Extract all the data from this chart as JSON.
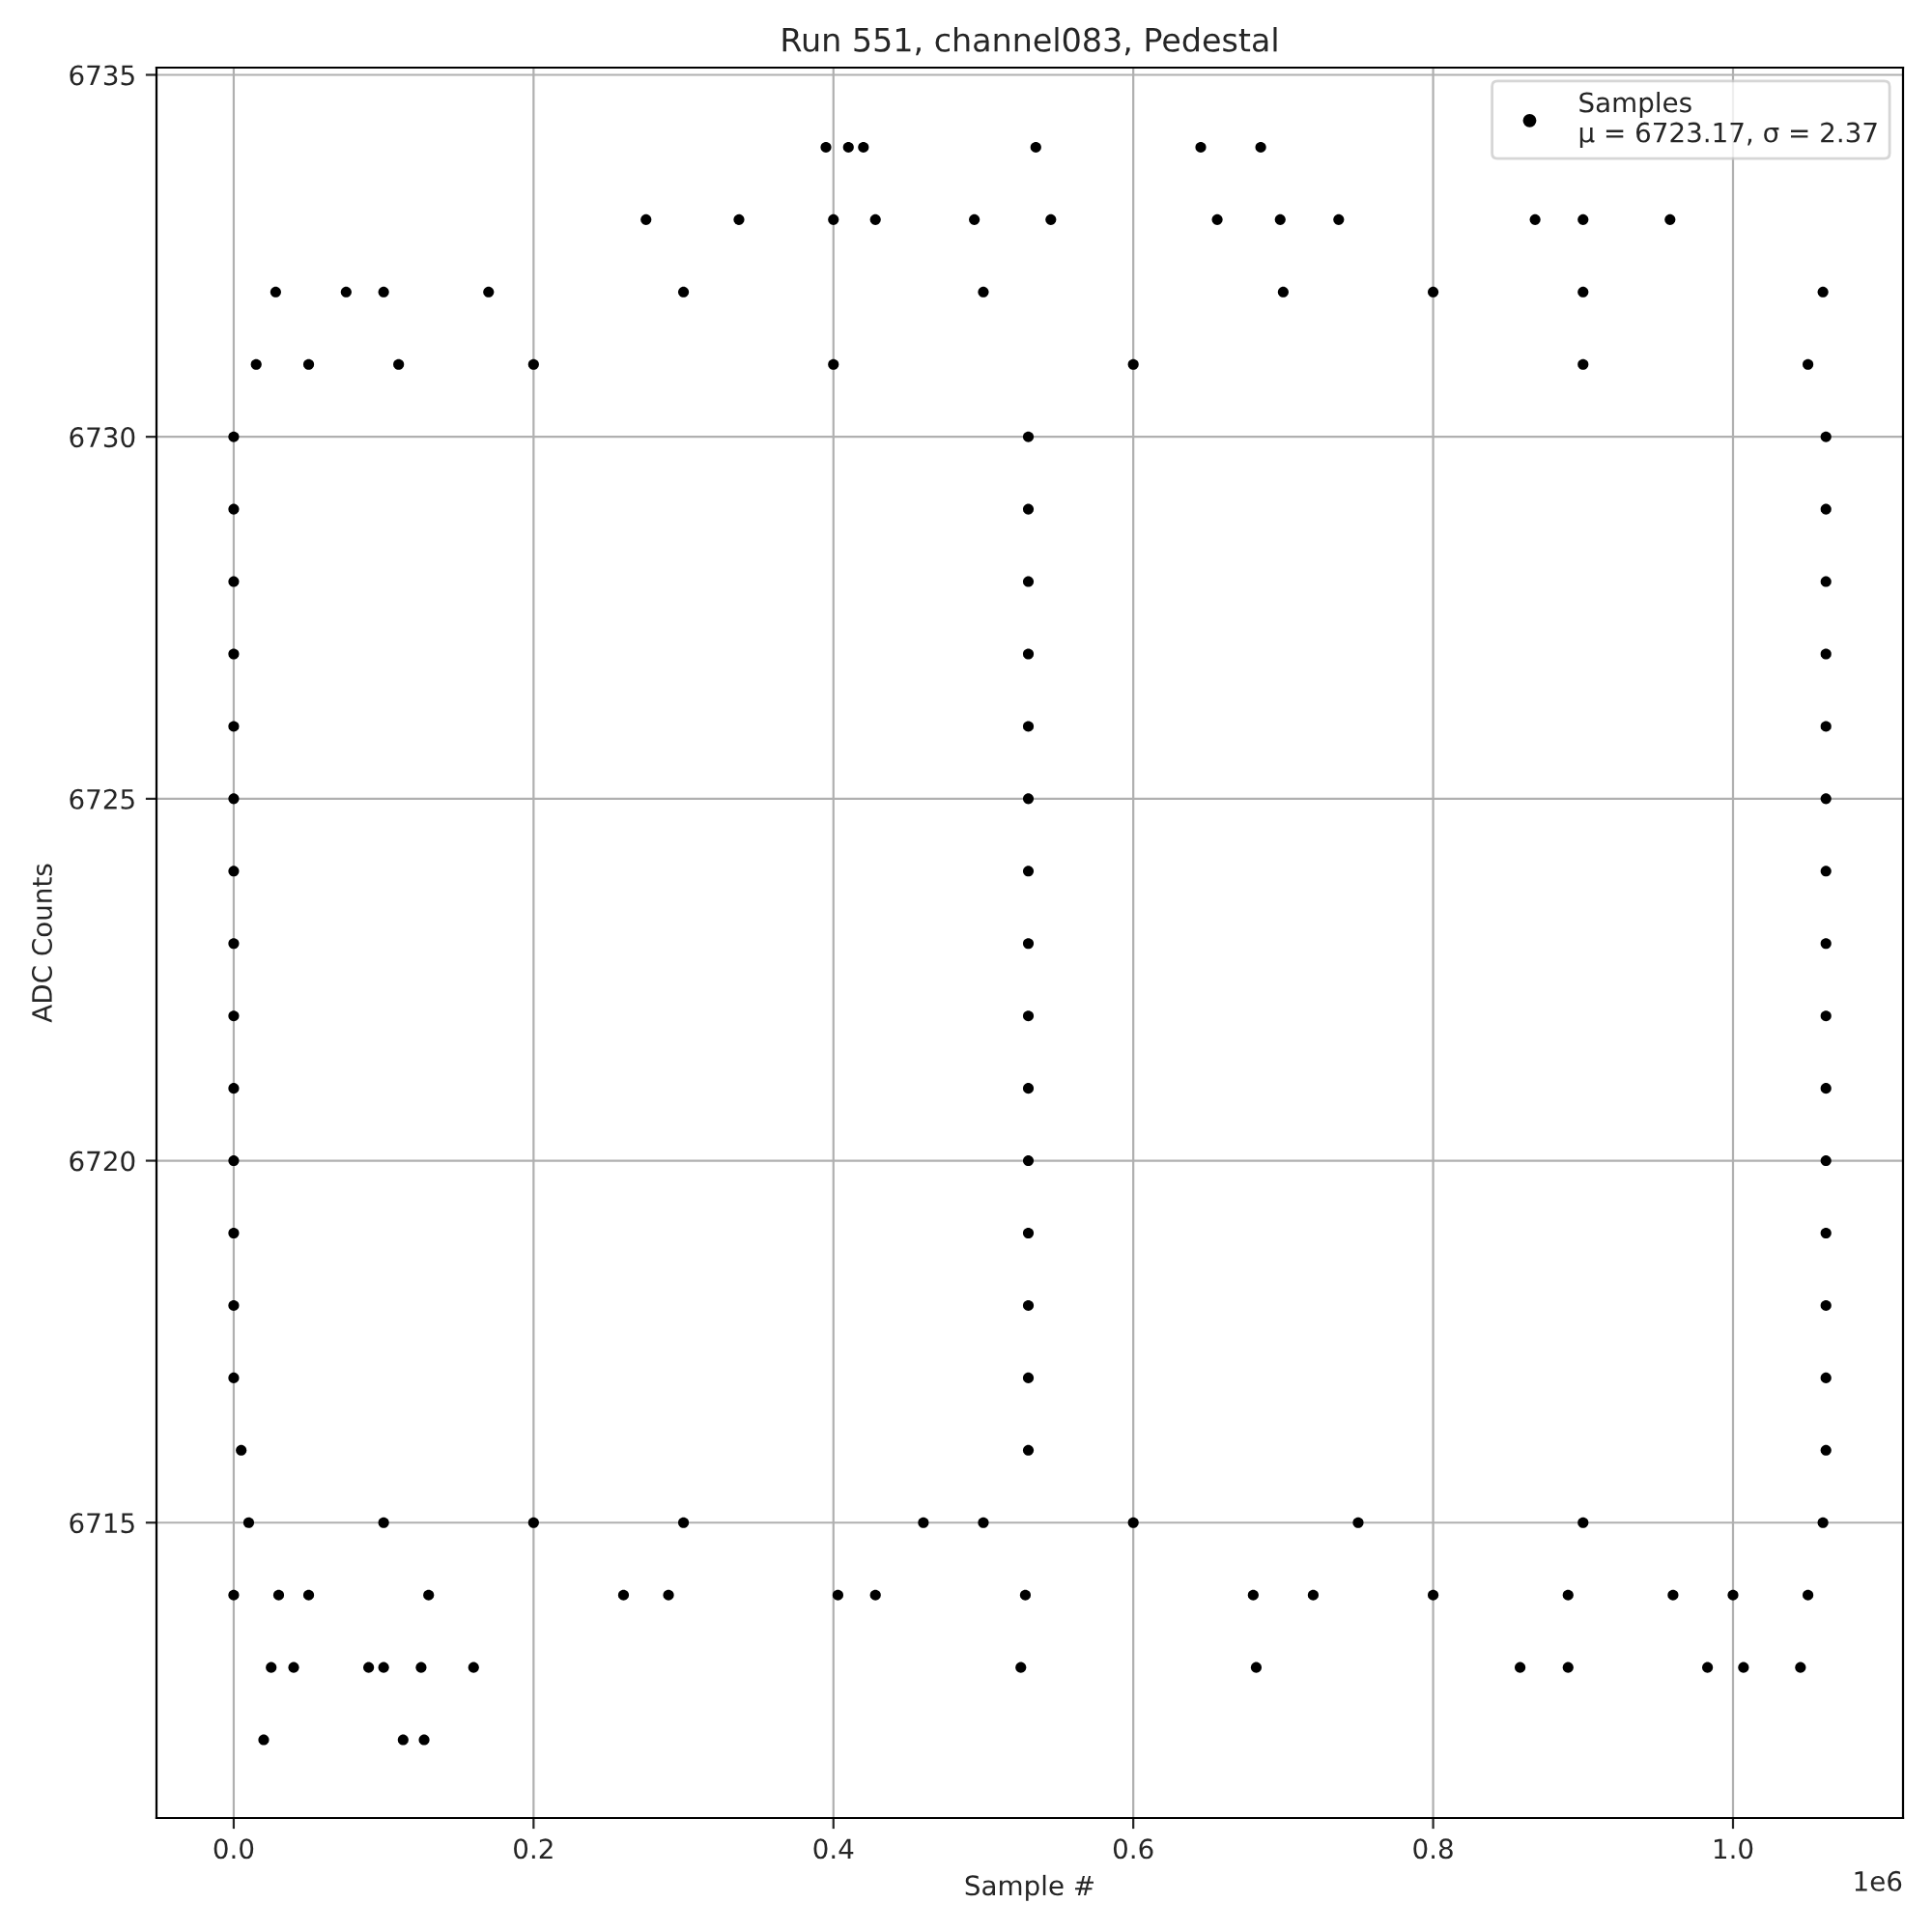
{
  "chart_data": {
    "type": "scatter",
    "title": "Run 551, channel083, Pedestal",
    "xlabel": "Sample #",
    "ylabel": "ADC Counts",
    "xlim": [
      -0.0515,
      1.1134
    ],
    "ylim": [
      6710.92,
      6735.1
    ],
    "xticks": [
      {
        "value": 0,
        "label": "0.0"
      },
      0.2,
      0.4,
      0.6,
      0.8,
      {
        "value": 1,
        "label": "1.0"
      }
    ],
    "yticks": [
      6715,
      6720,
      6725,
      6730,
      6735
    ],
    "grid": true,
    "legend": "top right",
    "marker": "circle",
    "annotations": [
      "1e6"
    ],
    "series": [
      {
        "name": "Samples\nμ = 6723.17, σ = 2.37",
        "color": "#000000",
        "x": [
          0.0,
          0.53,
          1.062,
          0.0,
          0.53,
          1.062,
          0.0,
          0.53,
          1.062,
          0.0,
          0.53,
          1.062,
          0.0,
          0.53,
          1.062,
          0.0,
          0.53,
          1.062,
          0.0,
          0.53,
          1.062,
          0.0,
          0.53,
          1.062,
          0.0,
          0.53,
          1.062,
          0.0,
          0.53,
          1.062,
          0.0,
          0.53,
          1.062,
          0.0,
          0.53,
          1.062,
          0.0,
          0.53,
          1.062,
          0.0,
          0.53,
          1.062,
          0.005,
          0.53,
          1.062,
          0.02,
          0.113,
          0.127,
          0.025,
          0.04,
          0.09,
          0.1,
          0.125,
          0.16,
          0.525,
          0.682,
          0.858,
          0.89,
          0.983,
          1.007,
          1.045,
          0.0,
          0.03,
          0.05,
          0.13,
          0.26,
          0.29,
          0.403,
          0.428,
          0.528,
          0.68,
          0.72,
          0.8,
          0.89,
          0.96,
          1.0,
          1.05,
          0.01,
          0.1,
          0.2,
          0.3,
          0.46,
          0.5,
          0.6,
          0.75,
          0.9,
          1.06,
          0.015,
          0.05,
          0.11,
          0.2,
          0.4,
          0.6,
          0.9,
          1.05,
          0.028,
          0.075,
          0.1,
          0.17,
          0.3,
          0.5,
          0.7,
          0.8,
          0.9,
          1.06,
          0.275,
          0.337,
          0.4,
          0.428,
          0.494,
          0.545,
          0.656,
          0.698,
          0.737,
          0.868,
          0.9,
          0.958,
          0.395,
          0.41,
          0.42,
          0.535,
          0.645,
          0.685
        ],
        "values": [
          6730,
          6730,
          6730,
          6729,
          6729,
          6729,
          6728,
          6728,
          6728,
          6727,
          6727,
          6727,
          6726,
          6726,
          6726,
          6725,
          6725,
          6725,
          6724,
          6724,
          6724,
          6723,
          6723,
          6723,
          6722,
          6722,
          6722,
          6721,
          6721,
          6721,
          6720,
          6720,
          6720,
          6719,
          6719,
          6719,
          6718,
          6718,
          6718,
          6717,
          6717,
          6717,
          6716,
          6716,
          6716,
          6712,
          6712,
          6712,
          6713,
          6713,
          6713,
          6713,
          6713,
          6713,
          6713,
          6713,
          6713,
          6713,
          6713,
          6713,
          6713,
          6714,
          6714,
          6714,
          6714,
          6714,
          6714,
          6714,
          6714,
          6714,
          6714,
          6714,
          6714,
          6714,
          6714,
          6714,
          6714,
          6715,
          6715,
          6715,
          6715,
          6715,
          6715,
          6715,
          6715,
          6715,
          6715,
          6731,
          6731,
          6731,
          6731,
          6731,
          6731,
          6731,
          6731,
          6732,
          6732,
          6732,
          6732,
          6732,
          6732,
          6732,
          6732,
          6732,
          6732,
          6733,
          6733,
          6733,
          6733,
          6733,
          6733,
          6733,
          6733,
          6733,
          6733,
          6733,
          6733,
          6734,
          6734,
          6734,
          6734,
          6734,
          6734
        ]
      }
    ]
  }
}
